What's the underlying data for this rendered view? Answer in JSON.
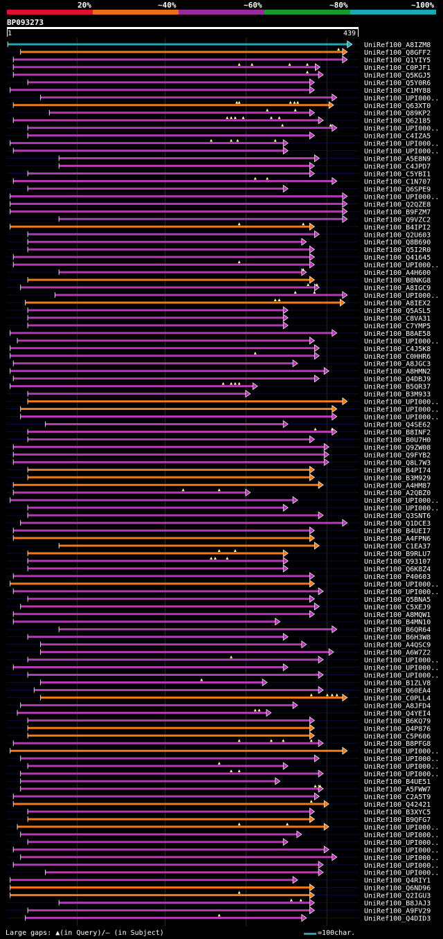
{
  "legend": {
    "labels": [
      "20%",
      "~40%",
      "~60%",
      "~80%",
      "~100%"
    ],
    "colors": [
      "#e0102a",
      "#e8701c",
      "#9b2a9b",
      "#1a9a28",
      "#1aa8b8"
    ]
  },
  "query": {
    "name": "BP093273",
    "start": "1",
    "end": "439",
    "length": 439
  },
  "footer": {
    "gaps_text": "Large gaps: ▲(in Query)/— (in Subject)",
    "scale_text": "=100char."
  },
  "chart_data": {
    "type": "alignment-overview",
    "title": "BP093273",
    "query_length": 439,
    "hits": [
      {
        "name": "UniRef100_A8IZM8",
        "start": 1,
        "end": 431,
        "identity": "~100%",
        "gaps": []
      },
      {
        "name": "UniRef100_Q8GFF2",
        "start": 17,
        "end": 425,
        "identity": "~40%",
        "gaps": [
          414
        ]
      },
      {
        "name": "UniRef100_Q1YIY5",
        "start": 8,
        "end": 425,
        "identity": "~60%",
        "gaps": []
      },
      {
        "name": "UniRef100_C0PJF1",
        "start": 8,
        "end": 391,
        "identity": "~60%",
        "gaps": [
          290,
          306,
          353,
          375
        ]
      },
      {
        "name": "UniRef100_Q5KGJ5",
        "start": 8,
        "end": 395,
        "identity": "~60%",
        "gaps": [
          375
        ]
      },
      {
        "name": "UniRef100_Q5Y0R6",
        "start": 26,
        "end": 384,
        "identity": "~60%",
        "gaps": []
      },
      {
        "name": "UniRef100_C1MY88",
        "start": 4,
        "end": 384,
        "identity": "~60%",
        "gaps": []
      },
      {
        "name": "UniRef100_UPI000..1",
        "start": 42,
        "end": 412,
        "identity": "~60%",
        "gaps": []
      },
      {
        "name": "UniRef100_Q63XT0",
        "start": 8,
        "end": 408,
        "identity": "~40%",
        "gaps": [
          287,
          290,
          354,
          359,
          363
        ]
      },
      {
        "name": "UniRef100_Q89KP2",
        "start": 53,
        "end": 384,
        "identity": "~60%",
        "gaps": [
          325,
          360
        ]
      },
      {
        "name": "UniRef100_Q62185",
        "start": 8,
        "end": 395,
        "identity": "~60%",
        "gaps": [
          275,
          280,
          285,
          295,
          330,
          340
        ]
      },
      {
        "name": "UniRef100_UPI000..2",
        "start": 26,
        "end": 412,
        "identity": "~60%",
        "gaps": [
          344,
          404
        ]
      },
      {
        "name": "UniRef100_C4IZA5",
        "start": 26,
        "end": 384,
        "identity": "~60%",
        "gaps": []
      },
      {
        "name": "UniRef100_UPI000..3",
        "start": 4,
        "end": 351,
        "identity": "~60%",
        "gaps": [
          255,
          280,
          288,
          335
        ]
      },
      {
        "name": "UniRef100_UPI000..4",
        "start": 8,
        "end": 351,
        "identity": "~60%",
        "gaps": []
      },
      {
        "name": "UniRef100_A5E8N9",
        "start": 65,
        "end": 390,
        "identity": "~60%",
        "gaps": []
      },
      {
        "name": "UniRef100_C4JPD7",
        "start": 65,
        "end": 384,
        "identity": "~60%",
        "gaps": []
      },
      {
        "name": "UniRef100_C5YBI1",
        "start": 26,
        "end": 384,
        "identity": "~60%",
        "gaps": []
      },
      {
        "name": "UniRef100_C1N707",
        "start": 8,
        "end": 412,
        "identity": "~60%",
        "gaps": [
          310,
          325
        ]
      },
      {
        "name": "UniRef100_Q6SPE9",
        "start": 26,
        "end": 351,
        "identity": "~60%",
        "gaps": []
      },
      {
        "name": "UniRef100_UPI000..5",
        "start": 4,
        "end": 425,
        "identity": "~60%",
        "gaps": []
      },
      {
        "name": "UniRef100_Q2QZE8",
        "start": 4,
        "end": 425,
        "identity": "~60%",
        "gaps": []
      },
      {
        "name": "UniRef100_B9FZM7",
        "start": 4,
        "end": 425,
        "identity": "~60%",
        "gaps": []
      },
      {
        "name": "UniRef100_Q9VZC2",
        "start": 65,
        "end": 425,
        "identity": "~60%",
        "gaps": []
      },
      {
        "name": "UniRef100_B4IPI2",
        "start": 4,
        "end": 384,
        "identity": "~40%",
        "gaps": [
          290,
          370
        ]
      },
      {
        "name": "UniRef100_Q2U603",
        "start": 26,
        "end": 390,
        "identity": "~60%",
        "gaps": []
      },
      {
        "name": "UniRef100_Q8B690",
        "start": 26,
        "end": 374,
        "identity": "~60%",
        "gaps": []
      },
      {
        "name": "UniRef100_Q5I2R0",
        "start": 26,
        "end": 384,
        "identity": "~60%",
        "gaps": []
      },
      {
        "name": "UniRef100_Q41645",
        "start": 8,
        "end": 384,
        "identity": "~60%",
        "gaps": []
      },
      {
        "name": "UniRef100_UPI000..6",
        "start": 8,
        "end": 384,
        "identity": "~60%",
        "gaps": [
          290
        ]
      },
      {
        "name": "UniRef100_A4H600",
        "start": 65,
        "end": 374,
        "identity": "~60%",
        "gaps": [
          370
        ]
      },
      {
        "name": "UniRef100_B8NKG8",
        "start": 26,
        "end": 384,
        "identity": "~40%",
        "gaps": []
      },
      {
        "name": "UniRef100_A8IGC9",
        "start": 17,
        "end": 390,
        "identity": "~60%",
        "gaps": [
          376,
          387
        ]
      },
      {
        "name": "UniRef100_UPI000..7",
        "start": 60,
        "end": 425,
        "identity": "~60%",
        "gaps": [
          360,
          384
        ]
      },
      {
        "name": "UniRef100_A8IEX2",
        "start": 23,
        "end": 422,
        "identity": "~40%",
        "gaps": [
          335,
          340
        ]
      },
      {
        "name": "UniRef100_Q5ASL5",
        "start": 26,
        "end": 351,
        "identity": "~60%",
        "gaps": []
      },
      {
        "name": "UniRef100_C8VA31",
        "start": 26,
        "end": 351,
        "identity": "~60%",
        "gaps": []
      },
      {
        "name": "UniRef100_C7YMP5",
        "start": 26,
        "end": 351,
        "identity": "~60%",
        "gaps": []
      },
      {
        "name": "UniRef100_B8AE58",
        "start": 4,
        "end": 412,
        "identity": "~60%",
        "gaps": []
      },
      {
        "name": "UniRef100_UPI000..8",
        "start": 13,
        "end": 384,
        "identity": "~60%",
        "gaps": []
      },
      {
        "name": "UniRef100_C4J5K8",
        "start": 4,
        "end": 390,
        "identity": "~60%",
        "gaps": []
      },
      {
        "name": "UniRef100_C0HHR6",
        "start": 4,
        "end": 390,
        "identity": "~60%",
        "gaps": [
          310
        ]
      },
      {
        "name": "UniRef100_A8JGC3",
        "start": 8,
        "end": 363,
        "identity": "~60%",
        "gaps": []
      },
      {
        "name": "UniRef100_A8HMN2",
        "start": 4,
        "end": 402,
        "identity": "~60%",
        "gaps": []
      },
      {
        "name": "UniRef100_Q4DBJ9",
        "start": 8,
        "end": 390,
        "identity": "~60%",
        "gaps": []
      },
      {
        "name": "UniRef100_B5QR37",
        "start": 4,
        "end": 313,
        "identity": "~60%",
        "gaps": [
          270,
          280,
          285,
          290
        ]
      },
      {
        "name": "UniRef100_B3M933",
        "start": 26,
        "end": 304,
        "identity": "~60%",
        "gaps": []
      },
      {
        "name": "UniRef100_UPI000..9",
        "start": 26,
        "end": 425,
        "identity": "~40%",
        "gaps": []
      },
      {
        "name": "UniRef100_UPI000..10",
        "start": 17,
        "end": 412,
        "identity": "~40%",
        "gaps": []
      },
      {
        "name": "UniRef100_UPI000..11",
        "start": 17,
        "end": 412,
        "identity": "~60%",
        "gaps": []
      },
      {
        "name": "UniRef100_Q4SE62",
        "start": 48,
        "end": 351,
        "identity": "~60%",
        "gaps": []
      },
      {
        "name": "UniRef100_B8INF2",
        "start": 26,
        "end": 412,
        "identity": "~60%",
        "gaps": [
          385,
          406
        ]
      },
      {
        "name": "UniRef100_B0U7H0",
        "start": 26,
        "end": 384,
        "identity": "~60%",
        "gaps": []
      },
      {
        "name": "UniRef100_Q9ZW08",
        "start": 8,
        "end": 402,
        "identity": "~60%",
        "gaps": []
      },
      {
        "name": "UniRef100_Q9FYB2",
        "start": 8,
        "end": 402,
        "identity": "~60%",
        "gaps": []
      },
      {
        "name": "UniRef100_Q8L7W3",
        "start": 8,
        "end": 402,
        "identity": "~60%",
        "gaps": []
      },
      {
        "name": "UniRef100_B4PI74",
        "start": 26,
        "end": 384,
        "identity": "~40%",
        "gaps": []
      },
      {
        "name": "UniRef100_B3M929",
        "start": 26,
        "end": 384,
        "identity": "~40%",
        "gaps": []
      },
      {
        "name": "UniRef100_A4HM87",
        "start": 8,
        "end": 395,
        "identity": "~40%",
        "gaps": []
      },
      {
        "name": "UniRef100_A2QBZ0",
        "start": 8,
        "end": 304,
        "identity": "~60%",
        "gaps": [
          220,
          265
        ]
      },
      {
        "name": "UniRef100_UPI000..12",
        "start": 4,
        "end": 363,
        "identity": "~60%",
        "gaps": []
      },
      {
        "name": "UniRef100_UPI000..13",
        "start": 26,
        "end": 351,
        "identity": "~60%",
        "gaps": []
      },
      {
        "name": "UniRef100_Q3SNT6",
        "start": 26,
        "end": 395,
        "identity": "~60%",
        "gaps": []
      },
      {
        "name": "UniRef100_Q1DCE3",
        "start": 17,
        "end": 425,
        "identity": "~60%",
        "gaps": []
      },
      {
        "name": "UniRef100_B4UEI7",
        "start": 8,
        "end": 384,
        "identity": "~60%",
        "gaps": []
      },
      {
        "name": "UniRef100_A4FPN6",
        "start": 8,
        "end": 384,
        "identity": "~40%",
        "gaps": []
      },
      {
        "name": "UniRef100_C1EA37",
        "start": 65,
        "end": 390,
        "identity": "~40%",
        "gaps": []
      },
      {
        "name": "UniRef100_B9RLU7",
        "start": 26,
        "end": 351,
        "identity": "~40%",
        "gaps": [
          265,
          285
        ]
      },
      {
        "name": "UniRef100_Q93107",
        "start": 26,
        "end": 351,
        "identity": "~60%",
        "gaps": [
          255,
          260,
          275
        ]
      },
      {
        "name": "UniRef100_Q6K8Z4",
        "start": 26,
        "end": 351,
        "identity": "~60%",
        "gaps": []
      },
      {
        "name": "UniRef100_P40603",
        "start": 8,
        "end": 384,
        "identity": "~60%",
        "gaps": []
      },
      {
        "name": "UniRef100_UPI000..14",
        "start": 4,
        "end": 384,
        "identity": "~40%",
        "gaps": []
      },
      {
        "name": "UniRef100_UPI000..15",
        "start": 8,
        "end": 395,
        "identity": "~60%",
        "gaps": []
      },
      {
        "name": "UniRef100_Q5BNA5",
        "start": 26,
        "end": 384,
        "identity": "~60%",
        "gaps": []
      },
      {
        "name": "UniRef100_C5XEJ9",
        "start": 17,
        "end": 390,
        "identity": "~60%",
        "gaps": []
      },
      {
        "name": "UniRef100_A8MQW1",
        "start": 8,
        "end": 384,
        "identity": "~60%",
        "gaps": []
      },
      {
        "name": "UniRef100_B4MN10",
        "start": 8,
        "end": 341,
        "identity": "~60%",
        "gaps": []
      },
      {
        "name": "UniRef100_B6QR64",
        "start": 65,
        "end": 412,
        "identity": "~60%",
        "gaps": []
      },
      {
        "name": "UniRef100_B6H3W8",
        "start": 26,
        "end": 351,
        "identity": "~60%",
        "gaps": []
      },
      {
        "name": "UniRef100_A4QSC9",
        "start": 42,
        "end": 374,
        "identity": "~60%",
        "gaps": []
      },
      {
        "name": "UniRef100_A6W7Z2",
        "start": 42,
        "end": 408,
        "identity": "~60%",
        "gaps": []
      },
      {
        "name": "UniRef100_UPI000..16",
        "start": 26,
        "end": 395,
        "identity": "~60%",
        "gaps": [
          280
        ]
      },
      {
        "name": "UniRef100_UPI000..17",
        "start": 8,
        "end": 351,
        "identity": "~60%",
        "gaps": []
      },
      {
        "name": "UniRef100_UPI000..18",
        "start": 26,
        "end": 395,
        "identity": "~60%",
        "gaps": []
      },
      {
        "name": "UniRef100_B1ZLV8",
        "start": 42,
        "end": 325,
        "identity": "~60%",
        "gaps": [
          243
        ]
      },
      {
        "name": "UniRef100_Q60EA4",
        "start": 34,
        "end": 395,
        "identity": "~60%",
        "gaps": []
      },
      {
        "name": "UniRef100_C0PLL4",
        "start": 42,
        "end": 425,
        "identity": "~40%",
        "gaps": [
          380,
          400,
          406,
          412
        ]
      },
      {
        "name": "UniRef100_A8JFD4",
        "start": 17,
        "end": 363,
        "identity": "~60%",
        "gaps": []
      },
      {
        "name": "UniRef100_Q4YEI4",
        "start": 13,
        "end": 330,
        "identity": "~60%",
        "gaps": [
          310,
          315
        ]
      },
      {
        "name": "UniRef100_B6KQ79",
        "start": 26,
        "end": 384,
        "identity": "~60%",
        "gaps": []
      },
      {
        "name": "UniRef100_Q4P876",
        "start": 26,
        "end": 384,
        "identity": "~40%",
        "gaps": []
      },
      {
        "name": "UniRef100_C5P606",
        "start": 26,
        "end": 384,
        "identity": "~40%",
        "gaps": []
      },
      {
        "name": "UniRef100_B8PFG8",
        "start": 8,
        "end": 395,
        "identity": "~60%",
        "gaps": [
          290,
          330,
          345,
          380
        ]
      },
      {
        "name": "UniRef100_UPI000..19",
        "start": 4,
        "end": 425,
        "identity": "~40%",
        "gaps": []
      },
      {
        "name": "UniRef100_UPI000..20",
        "start": 17,
        "end": 390,
        "identity": "~60%",
        "gaps": []
      },
      {
        "name": "UniRef100_UPI000..21",
        "start": 26,
        "end": 351,
        "identity": "~60%",
        "gaps": [
          265
        ]
      },
      {
        "name": "UniRef100_UPI000..22",
        "start": 17,
        "end": 395,
        "identity": "~60%",
        "gaps": [
          280,
          290
        ]
      },
      {
        "name": "UniRef100_B4UE51",
        "start": 17,
        "end": 341,
        "identity": "~60%",
        "gaps": []
      },
      {
        "name": "UniRef100_A5FWW7",
        "start": 17,
        "end": 395,
        "identity": "~60%",
        "gaps": [
          385,
          391
        ]
      },
      {
        "name": "UniRef100_C2A5T9",
        "start": 8,
        "end": 390,
        "identity": "~60%",
        "gaps": []
      },
      {
        "name": "UniRef100_Q42421",
        "start": 8,
        "end": 402,
        "identity": "~40%",
        "gaps": [
          380
        ]
      },
      {
        "name": "UniRef100_B3XYC5",
        "start": 26,
        "end": 384,
        "identity": "~60%",
        "gaps": []
      },
      {
        "name": "UniRef100_B9QFG7",
        "start": 26,
        "end": 384,
        "identity": "~40%",
        "gaps": []
      },
      {
        "name": "UniRef100_UPI000..23",
        "start": 13,
        "end": 402,
        "identity": "~40%",
        "gaps": [
          290,
          350
        ]
      },
      {
        "name": "UniRef100_UPI000..24",
        "start": 17,
        "end": 368,
        "identity": "~60%",
        "gaps": []
      },
      {
        "name": "UniRef100_UPI000..25",
        "start": 26,
        "end": 351,
        "identity": "~60%",
        "gaps": []
      },
      {
        "name": "UniRef100_UPI000..26",
        "start": 8,
        "end": 402,
        "identity": "~60%",
        "gaps": []
      },
      {
        "name": "UniRef100_UPI000..27",
        "start": 17,
        "end": 412,
        "identity": "~60%",
        "gaps": []
      },
      {
        "name": "UniRef100_UPI000..28",
        "start": 8,
        "end": 395,
        "identity": "~60%",
        "gaps": []
      },
      {
        "name": "UniRef100_UPI000..29",
        "start": 48,
        "end": 395,
        "identity": "~60%",
        "gaps": []
      },
      {
        "name": "UniRef100_Q4RIY1",
        "start": 4,
        "end": 363,
        "identity": "~60%",
        "gaps": []
      },
      {
        "name": "UniRef100_Q6ND96",
        "start": 4,
        "end": 384,
        "identity": "~40%",
        "gaps": []
      },
      {
        "name": "UniRef100_Q2IGU3",
        "start": 4,
        "end": 384,
        "identity": "~40%",
        "gaps": [
          290
        ]
      },
      {
        "name": "UniRef100_B8JAJ3",
        "start": 65,
        "end": 384,
        "identity": "~60%",
        "gaps": [
          355,
          367
        ]
      },
      {
        "name": "UniRef100_A9FV29",
        "start": 26,
        "end": 384,
        "identity": "~60%",
        "gaps": []
      },
      {
        "name": "UniRef100_Q4DID3",
        "start": 23,
        "end": 374,
        "identity": "~60%",
        "gaps": [
          265
        ]
      }
    ]
  }
}
